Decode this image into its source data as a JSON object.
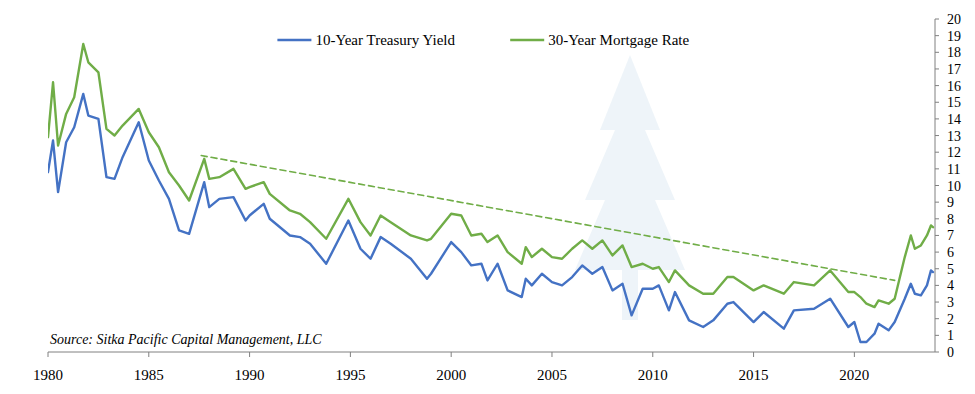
{
  "chart_data": {
    "type": "line",
    "legend": "top",
    "grid": false,
    "annotations": [
      "Source: Sitka Pacific Capital Management, LLC"
    ],
    "xlim": [
      1980,
      2024
    ],
    "xticks": [
      1980,
      1985,
      1990,
      1995,
      2000,
      2005,
      2010,
      2015,
      2020
    ],
    "ylim": [
      0,
      20
    ],
    "yticks": [
      0,
      1,
      2,
      3,
      4,
      5,
      6,
      7,
      8,
      9,
      10,
      11,
      12,
      13,
      14,
      15,
      16,
      17,
      18,
      19,
      20
    ],
    "x": [
      1980.0,
      1980.25,
      1980.5,
      1980.9,
      1981.3,
      1981.75,
      1982.0,
      1982.5,
      1982.9,
      1983.3,
      1983.7,
      1984.5,
      1985.0,
      1985.5,
      1986.0,
      1986.5,
      1987.0,
      1987.75,
      1988.0,
      1988.5,
      1989.2,
      1989.8,
      1990.0,
      1990.7,
      1991.0,
      1992.0,
      1992.5,
      1993.0,
      1993.8,
      1994.9,
      1995.5,
      1996.0,
      1996.5,
      1997.0,
      1998.0,
      1998.8,
      1999.0,
      2000.0,
      2000.5,
      2001.0,
      2001.5,
      2001.8,
      2002.3,
      2002.8,
      2003.5,
      2003.7,
      2004.0,
      2004.5,
      2005.0,
      2005.5,
      2006.0,
      2006.5,
      2007.0,
      2007.5,
      2008.0,
      2008.5,
      2008.95,
      2009.5,
      2010.0,
      2010.3,
      2010.8,
      2011.1,
      2011.8,
      2012.5,
      2013.0,
      2013.7,
      2014.0,
      2015.0,
      2015.5,
      2016.5,
      2017.0,
      2018.0,
      2018.8,
      2019.7,
      2020.0,
      2020.3,
      2020.6,
      2021.0,
      2021.2,
      2021.7,
      2022.0,
      2022.5,
      2022.8,
      2023.0,
      2023.3,
      2023.6,
      2023.8,
      2023.9
    ],
    "series": [
      {
        "name": "10-Year Treasury Yield",
        "color": "#4472c4",
        "line_style": "solid",
        "values": [
          10.8,
          12.7,
          9.6,
          12.6,
          13.5,
          15.5,
          14.2,
          14.0,
          10.5,
          10.4,
          11.7,
          13.8,
          11.5,
          10.3,
          9.2,
          7.3,
          7.1,
          10.2,
          8.7,
          9.2,
          9.3,
          7.9,
          8.2,
          8.9,
          8.0,
          7.0,
          6.9,
          6.5,
          5.3,
          7.9,
          6.2,
          5.6,
          6.9,
          6.5,
          5.6,
          4.4,
          4.7,
          6.6,
          6.0,
          5.2,
          5.3,
          4.3,
          5.3,
          3.7,
          3.3,
          4.4,
          4.0,
          4.7,
          4.2,
          4.0,
          4.5,
          5.2,
          4.7,
          5.1,
          3.7,
          4.1,
          2.2,
          3.8,
          3.8,
          4.0,
          2.5,
          3.6,
          1.9,
          1.5,
          1.9,
          2.9,
          3.0,
          1.8,
          2.4,
          1.4,
          2.5,
          2.6,
          3.2,
          1.5,
          1.8,
          0.6,
          0.6,
          1.1,
          1.7,
          1.3,
          1.8,
          3.2,
          4.1,
          3.5,
          3.4,
          4.0,
          4.9,
          4.8
        ]
      },
      {
        "name": "30-Year Mortgage Rate",
        "color": "#70ad47",
        "line_style": "solid",
        "values": [
          12.9,
          16.2,
          12.4,
          14.3,
          15.3,
          18.5,
          17.4,
          16.8,
          13.4,
          13.0,
          13.6,
          14.6,
          13.2,
          12.3,
          10.8,
          10.0,
          9.1,
          11.6,
          10.4,
          10.5,
          11.0,
          9.8,
          9.9,
          10.2,
          9.5,
          8.5,
          8.3,
          7.8,
          6.8,
          9.2,
          7.8,
          7.0,
          8.2,
          7.8,
          7.0,
          6.7,
          6.8,
          8.3,
          8.2,
          7.0,
          7.1,
          6.6,
          7.0,
          6.0,
          5.3,
          6.3,
          5.7,
          6.2,
          5.7,
          5.6,
          6.2,
          6.7,
          6.2,
          6.7,
          5.8,
          6.4,
          5.1,
          5.3,
          5.0,
          5.1,
          4.2,
          4.9,
          4.0,
          3.5,
          3.5,
          4.5,
          4.5,
          3.7,
          4.0,
          3.5,
          4.2,
          4.0,
          4.9,
          3.6,
          3.6,
          3.3,
          2.9,
          2.7,
          3.1,
          2.9,
          3.2,
          5.7,
          7.0,
          6.2,
          6.4,
          7.0,
          7.6,
          7.5
        ]
      },
      {
        "color": "#70ad47",
        "line_style": "dashed",
        "x": [
          1987.6,
          2022.0
        ],
        "values": [
          11.8,
          4.3
        ]
      }
    ]
  }
}
